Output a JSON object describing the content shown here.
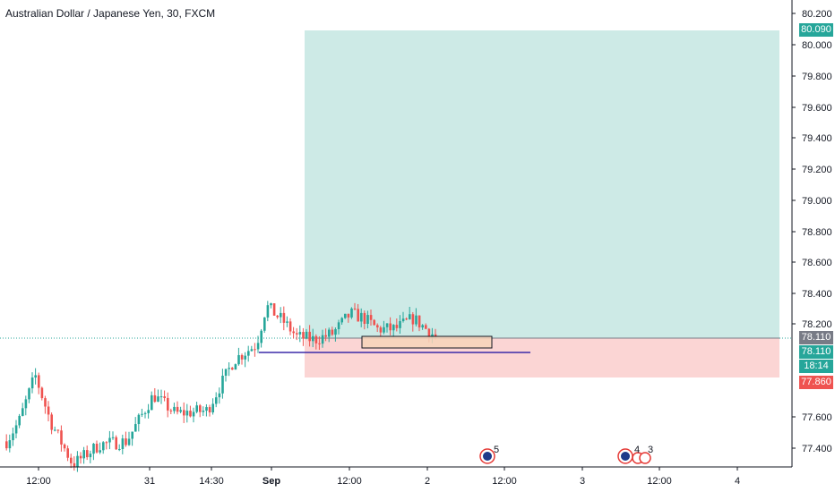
{
  "header": {
    "symbol_title": "Australian Dollar / Japanese Yen, 30, FXCM"
  },
  "price_axis": {
    "ticks": [
      "80.200",
      "80.000",
      "79.800",
      "79.600",
      "79.400",
      "79.200",
      "79.000",
      "78.800",
      "78.600",
      "78.400",
      "78.200",
      "77.600",
      "77.400"
    ],
    "tags": {
      "target": "80.090",
      "last_price": "78.110",
      "entry": "78.110",
      "countdown": "18:14",
      "stop": "77.860"
    }
  },
  "time_axis": {
    "ticks": [
      "12:00",
      "31",
      "14:30",
      "Sep",
      "12:00",
      "2",
      "12:00",
      "3",
      "12:00",
      "4"
    ]
  },
  "events": {
    "group1_count": "5",
    "group2_count_a": "4",
    "group2_count_b": "3"
  },
  "colors": {
    "bull": "#26a69a",
    "bear": "#ef5350",
    "profit_zone": "#cdeae6",
    "loss_zone": "#fbd5d4",
    "target_tag": "#26a69a",
    "stop_tag": "#ef5350",
    "last_tag": "#787b86",
    "level_line": "#3b2aa8"
  }
}
